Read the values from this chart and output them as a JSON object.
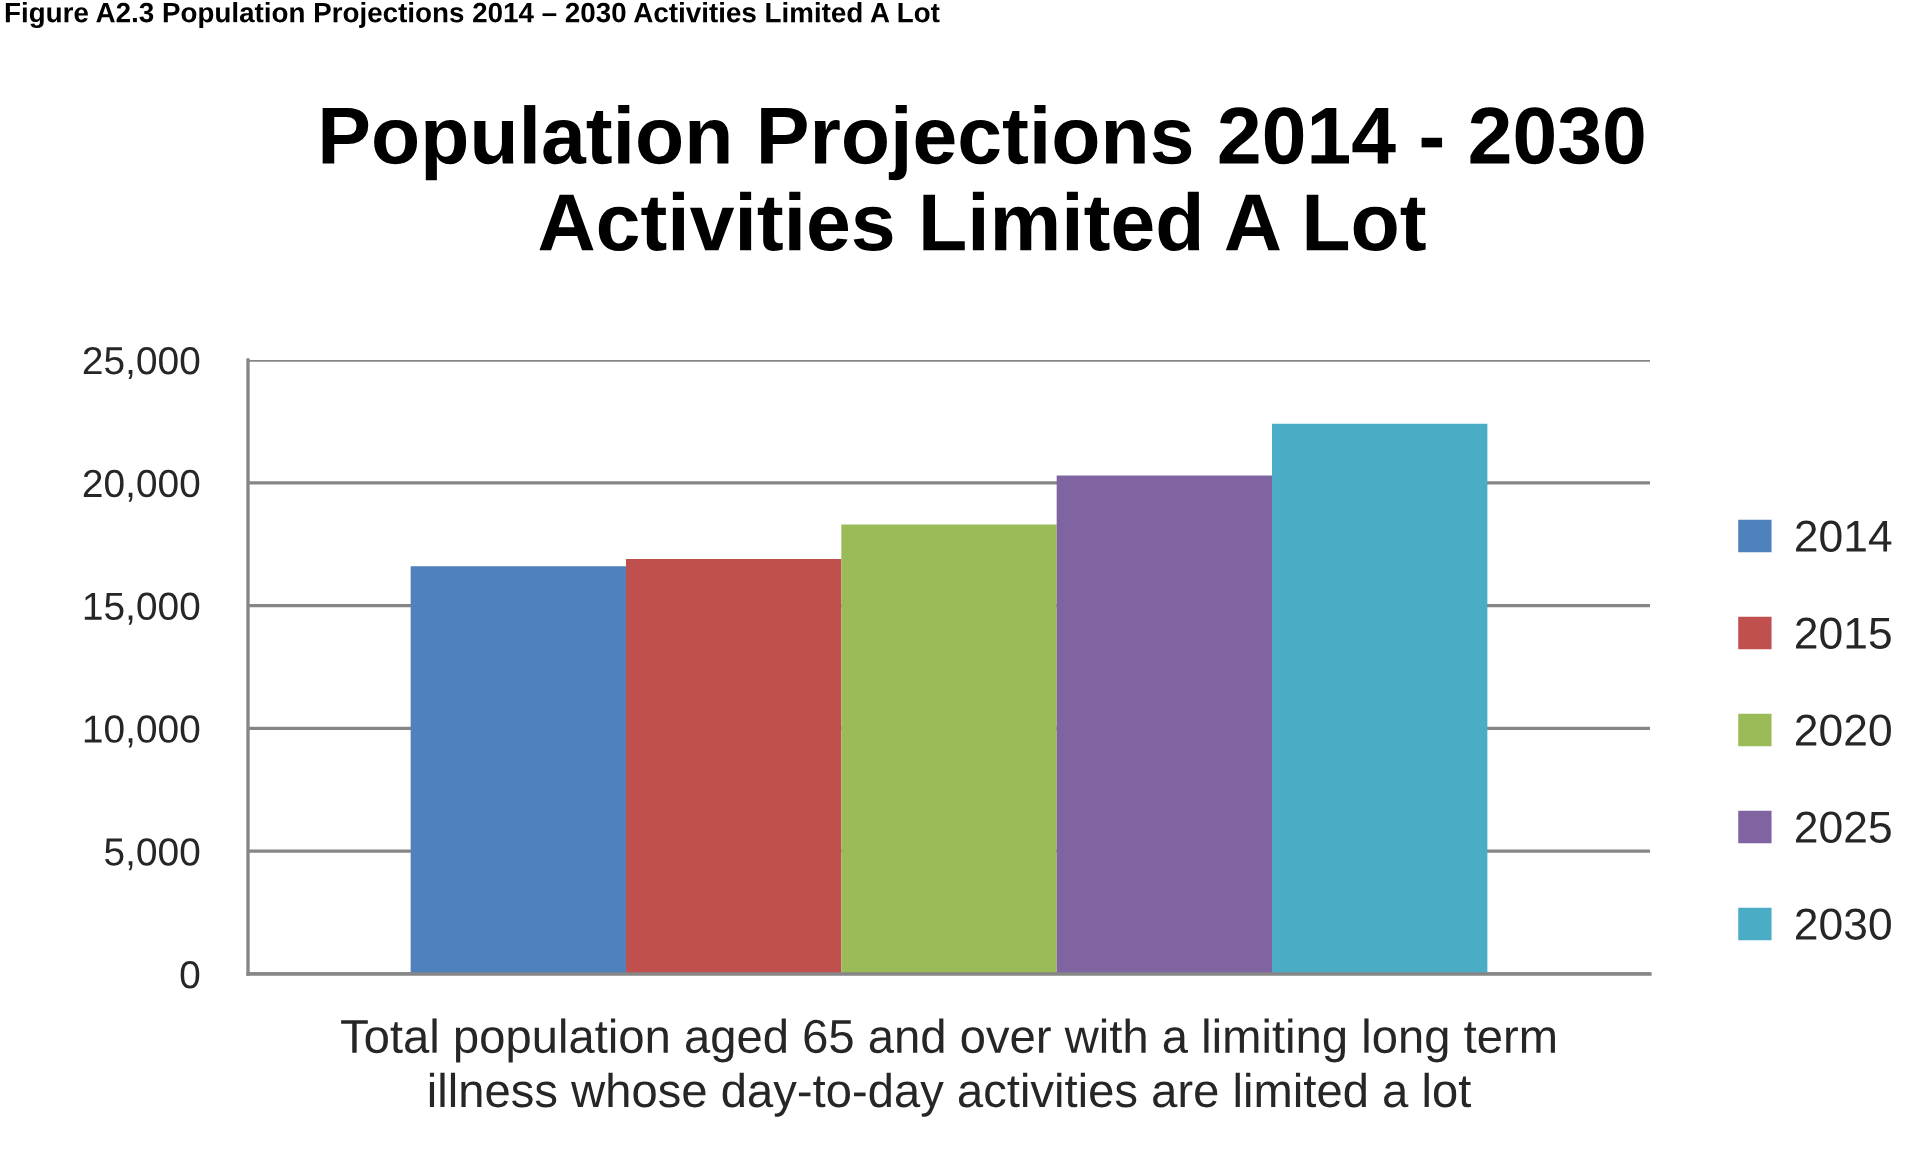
{
  "chart_data": {
    "type": "bar",
    "title": "Population Projections 2014 - 2030\nActivities Limited A Lot",
    "annotations": [
      "Figure A2.3 Population Projections 2014 – 2030 Activities Limited A Lot"
    ],
    "categories": [
      "Total population aged 65 and over with a limiting long term illness whose day-to-day activities are limited a lot"
    ],
    "series": [
      {
        "name": "2014",
        "color": "#4f81bd",
        "values": [
          16600
        ]
      },
      {
        "name": "2015",
        "color": "#c0504d",
        "values": [
          16900
        ]
      },
      {
        "name": "2020",
        "color": "#9bbb59",
        "values": [
          18300
        ]
      },
      {
        "name": "2025",
        "color": "#8064a2",
        "values": [
          20300
        ]
      },
      {
        "name": "2030",
        "color": "#4bacc6",
        "values": [
          22400
        ]
      }
    ],
    "ylim": [
      0,
      25000
    ],
    "yticks": [
      {
        "value": 0,
        "label": "0"
      },
      {
        "value": 5000,
        "label": "5,000"
      },
      {
        "value": 10000,
        "label": "10,000"
      },
      {
        "value": 15000,
        "label": "15,000"
      },
      {
        "value": 20000,
        "label": "20,000"
      },
      {
        "value": 25000,
        "label": "25,000"
      }
    ],
    "grid": "y",
    "legend": "right"
  }
}
